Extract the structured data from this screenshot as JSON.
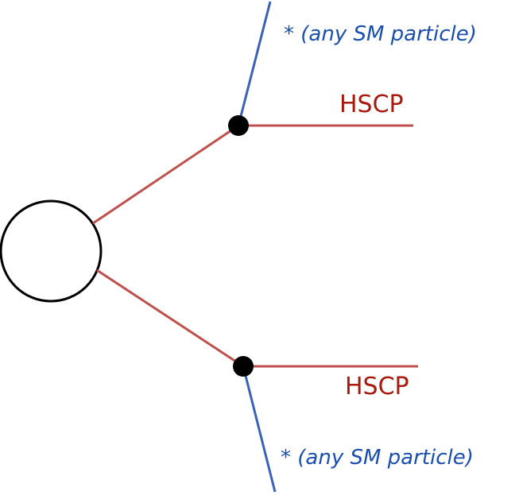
{
  "colors": {
    "hscp_line": "#c0504d",
    "sm_line": "#3a62b8",
    "vertex": "#000000",
    "blob_stroke": "#000000",
    "hscp_text": "#a81a0e",
    "sm_text": "#1a4fb0"
  },
  "labels": {
    "top_sm": "* (any SM particle)",
    "top_hscp": "HSCP",
    "bottom_hscp": "HSCP",
    "bottom_sm": "* (any SM particle)"
  }
}
